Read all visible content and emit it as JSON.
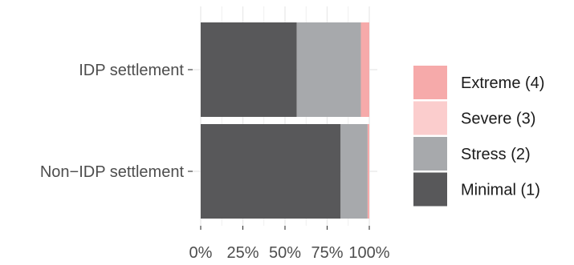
{
  "chart_data": {
    "type": "bar",
    "orientation": "horizontal",
    "stacked": true,
    "categories": [
      "IDP settlement",
      "Non−IDP settlement"
    ],
    "series": [
      {
        "name": "Minimal (1)",
        "values": [
          0.57,
          0.83
        ],
        "color": "#58585a"
      },
      {
        "name": "Stress (2)",
        "values": [
          0.38,
          0.16
        ],
        "color": "#a7a9ac"
      },
      {
        "name": "Severe (3)",
        "values": [
          0.0,
          0.0
        ],
        "color": "#fbcdcd"
      },
      {
        "name": "Extreme (4)",
        "values": [
          0.05,
          0.01
        ],
        "color": "#f6aaaa"
      }
    ],
    "legend_order": [
      "Extreme (4)",
      "Severe (3)",
      "Stress (2)",
      "Minimal (1)"
    ],
    "x_ticks": [
      0,
      0.25,
      0.5,
      0.75,
      1
    ],
    "x_tick_labels": [
      "0%",
      "25%",
      "50%",
      "75%",
      "100%"
    ],
    "xlim": [
      0,
      1
    ],
    "grid": true,
    "legend_position": "right",
    "title": "",
    "xlabel": "",
    "ylabel": ""
  }
}
